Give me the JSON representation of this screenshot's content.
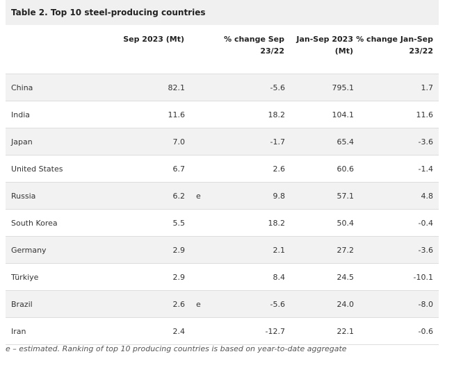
{
  "table": {
    "title": "Table 2. Top 10 steel-producing countries",
    "headers": {
      "country": "",
      "sep_2023": "Sep 2023 (Mt)",
      "pct_change_sep": "% change Sep 23/22",
      "jan_sep_2023": "Jan-Sep 2023 (Mt)",
      "pct_change_jan_sep": "% change Jan-Sep 23/22"
    },
    "rows": [
      {
        "country": "China",
        "sep_2023": "82.1",
        "flag": "",
        "pct_change_sep": "-5.6",
        "jan_sep_2023": "795.1",
        "pct_change_jan_sep": "1.7"
      },
      {
        "country": "India",
        "sep_2023": "11.6",
        "flag": "",
        "pct_change_sep": "18.2",
        "jan_sep_2023": "104.1",
        "pct_change_jan_sep": "11.6"
      },
      {
        "country": "Japan",
        "sep_2023": "7.0",
        "flag": "",
        "pct_change_sep": "-1.7",
        "jan_sep_2023": "65.4",
        "pct_change_jan_sep": "-3.6"
      },
      {
        "country": "United States",
        "sep_2023": "6.7",
        "flag": "",
        "pct_change_sep": "2.6",
        "jan_sep_2023": "60.6",
        "pct_change_jan_sep": "-1.4"
      },
      {
        "country": "Russia",
        "sep_2023": "6.2",
        "flag": "e",
        "pct_change_sep": "9.8",
        "jan_sep_2023": "57.1",
        "pct_change_jan_sep": "4.8"
      },
      {
        "country": "South Korea",
        "sep_2023": "5.5",
        "flag": "",
        "pct_change_sep": "18.2",
        "jan_sep_2023": "50.4",
        "pct_change_jan_sep": "-0.4"
      },
      {
        "country": "Germany",
        "sep_2023": "2.9",
        "flag": "",
        "pct_change_sep": "2.1",
        "jan_sep_2023": "27.2",
        "pct_change_jan_sep": "-3.6"
      },
      {
        "country": "Türkiye",
        "sep_2023": "2.9",
        "flag": "",
        "pct_change_sep": "8.4",
        "jan_sep_2023": "24.5",
        "pct_change_jan_sep": "-10.1"
      },
      {
        "country": "Brazil",
        "sep_2023": "2.6",
        "flag": "e",
        "pct_change_sep": "-5.6",
        "jan_sep_2023": "24.0",
        "pct_change_jan_sep": "-8.0"
      },
      {
        "country": "Iran",
        "sep_2023": "2.4",
        "flag": "",
        "pct_change_sep": "-12.7",
        "jan_sep_2023": "22.1",
        "pct_change_jan_sep": "-0.6"
      }
    ],
    "footnote": "e – estimated. Ranking of top 10 producing countries is based on year-to-date aggregate"
  }
}
